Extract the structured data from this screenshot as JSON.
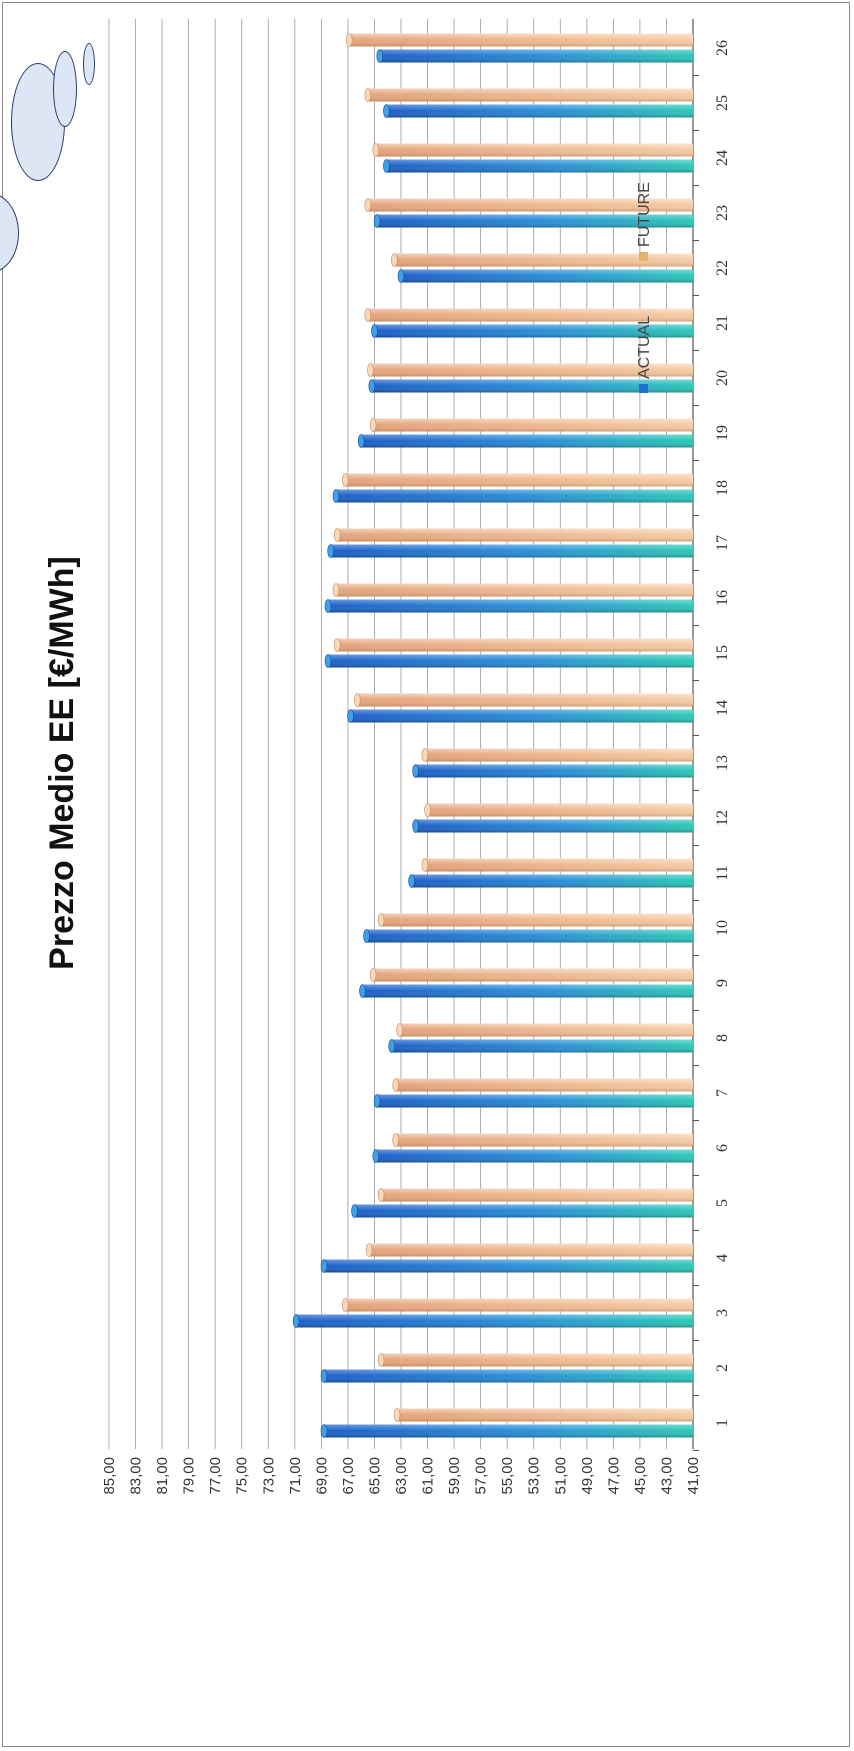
{
  "chart_data": {
    "type": "bar",
    "orientation": "horizontal (rotated page)",
    "title": "Prezzo Medio EE [€/MWh]",
    "xlabel": "",
    "ylabel": "",
    "categories": [
      "1",
      "2",
      "3",
      "4",
      "5",
      "6",
      "7",
      "8",
      "9",
      "10",
      "11",
      "12",
      "13",
      "14",
      "15",
      "16",
      "17",
      "18",
      "19",
      "20",
      "21",
      "22",
      "23",
      "24",
      "25",
      "26"
    ],
    "series": [
      {
        "name": "ACTUAL",
        "color": "#1f6fd0",
        "values": [
          68.8,
          68.8,
          70.9,
          68.8,
          66.5,
          64.9,
          64.8,
          63.7,
          65.9,
          65.6,
          62.2,
          61.9,
          61.9,
          66.8,
          68.5,
          68.5,
          68.3,
          67.9,
          66.0,
          65.2,
          65.0,
          63.0,
          64.8,
          64.1,
          64.1,
          64.6
        ]
      },
      {
        "name": "FUTURE",
        "color": "#e9a97a",
        "values": [
          63.3,
          64.5,
          67.2,
          65.4,
          64.5,
          63.4,
          63.4,
          63.1,
          65.1,
          64.5,
          61.2,
          61.0,
          61.2,
          66.3,
          67.8,
          67.9,
          67.8,
          67.2,
          65.1,
          65.3,
          65.5,
          63.5,
          65.5,
          64.9,
          65.5,
          66.9
        ]
      }
    ],
    "value_axis": {
      "min": 41,
      "max": 85,
      "step": 2,
      "tick_labels": [
        "41,00",
        "43,00",
        "45,00",
        "47,00",
        "49,00",
        "51,00",
        "53,00",
        "55,00",
        "57,00",
        "59,00",
        "61,00",
        "63,00",
        "65,00",
        "67,00",
        "69,00",
        "71,00",
        "73,00",
        "75,00",
        "77,00",
        "79,00",
        "81,00",
        "83,00",
        "85,00"
      ]
    },
    "grid": true,
    "legend": {
      "position": "top-right",
      "entries": [
        "ACTUAL",
        "FUTURE"
      ]
    }
  }
}
